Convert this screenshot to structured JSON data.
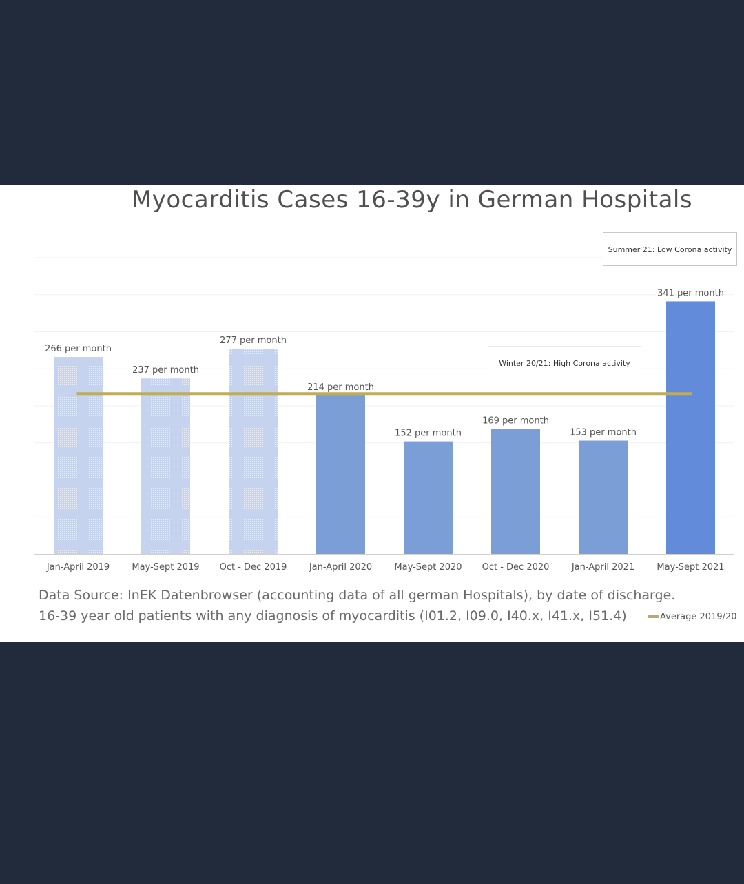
{
  "chart_data": {
    "type": "bar",
    "title": "Myocarditis Cases 16-39y in German Hospitals",
    "categories": [
      "Jan-April 2019",
      "May-Sept 2019",
      "Oct - Dec 2019",
      "Jan-April 2020",
      "May-Sept 2020",
      "Oct - Dec 2020",
      "Jan-April 2021",
      "May-Sept 2021"
    ],
    "values": [
      266,
      237,
      277,
      214,
      152,
      169,
      153,
      341
    ],
    "value_labels": [
      "266 per month",
      "237 per month",
      "277 per month",
      "214 per month",
      "152 per month",
      "169 per month",
      "153 per month",
      "341 per month"
    ],
    "ylim": [
      0,
      400
    ],
    "grid": true,
    "bar_colors": [
      "#c5d3ef",
      "#c5d3ef",
      "#c5d3ef",
      "#7b9ed7",
      "#7b9ed7",
      "#7b9ed7",
      "#7b9ed7",
      "#628cd9"
    ],
    "average_line": {
      "name": "Average 2019/20",
      "value": 216,
      "color": "#bcac5e"
    },
    "legend": {
      "position": "bottom-right",
      "label": "Average 2019/20"
    },
    "annotations": [
      "Summer 21: Low Corona activity",
      "Winter 20/21: High Corona activity"
    ],
    "source": {
      "line1": "Data Source: InEK Datenbrowser (accounting data of all german Hospitals), by date of discharge.",
      "line2": "16-39 year old patients with any diagnosis of myocarditis (I01.2, I09.0, I40.x, I41.x, I51.4)"
    }
  }
}
